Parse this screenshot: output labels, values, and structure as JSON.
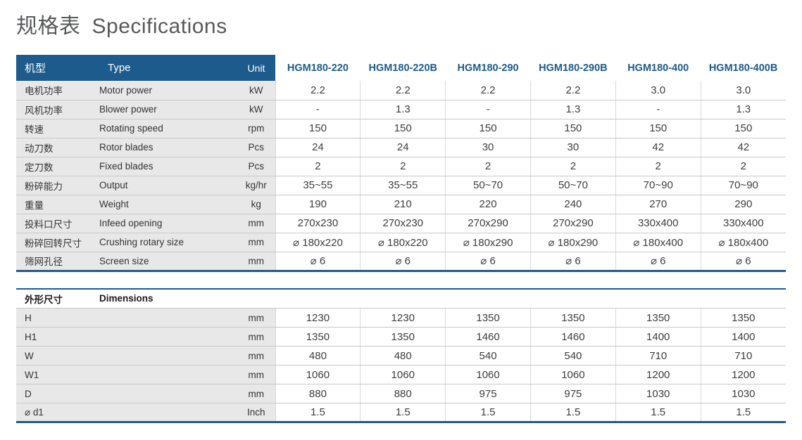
{
  "page": {
    "title_zh": "规格表",
    "title_en": "Specifications"
  },
  "colors": {
    "header_blue": "#1e5b8d",
    "model_text": "#1d5a8c",
    "gray_cell": "#e8e8e8",
    "title_gray": "#58595b"
  },
  "table": {
    "header": {
      "name_zh": "机型",
      "name_en": "Type",
      "unit": "Unit",
      "models": [
        "HGM180-220",
        "HGM180-220B",
        "HGM180-290",
        "HGM180-290B",
        "HGM180-400",
        "HGM180-400B"
      ]
    },
    "rows": [
      {
        "zh": "电机功率",
        "en": "Motor power",
        "unit": "kW",
        "values": [
          "2.2",
          "2.2",
          "2.2",
          "2.2",
          "3.0",
          "3.0"
        ]
      },
      {
        "zh": "风机功率",
        "en": "Blower power",
        "unit": "kW",
        "values": [
          "-",
          "1.3",
          "-",
          "1.3",
          "-",
          "1.3"
        ]
      },
      {
        "zh": "转速",
        "en": "Rotating speed",
        "unit": "rpm",
        "values": [
          "150",
          "150",
          "150",
          "150",
          "150",
          "150"
        ]
      },
      {
        "zh": "动刀数",
        "en": "Rotor blades",
        "unit": "Pcs",
        "values": [
          "24",
          "24",
          "30",
          "30",
          "42",
          "42"
        ]
      },
      {
        "zh": "定刀数",
        "en": "Fixed blades",
        "unit": "Pcs",
        "values": [
          "2",
          "2",
          "2",
          "2",
          "2",
          "2"
        ]
      },
      {
        "zh": "粉碎能力",
        "en": "Output",
        "unit": "kg/hr",
        "values": [
          "35~55",
          "35~55",
          "50~70",
          "50~70",
          "70~90",
          "70~90"
        ]
      },
      {
        "zh": "重量",
        "en": "Weight",
        "unit": "kg",
        "values": [
          "190",
          "210",
          "220",
          "240",
          "270",
          "290"
        ]
      },
      {
        "zh": "投料口尺寸",
        "en": "Infeed opening",
        "unit": "mm",
        "values": [
          "270x230",
          "270x230",
          "270x290",
          "270x290",
          "330x400",
          "330x400"
        ]
      },
      {
        "zh": "粉碎回转尺寸",
        "en": "Crushing rotary size",
        "unit": "mm",
        "values": [
          "⌀ 180x220",
          "⌀ 180x220",
          "⌀ 180x290",
          "⌀ 180x290",
          "⌀ 180x400",
          "⌀ 180x400"
        ]
      },
      {
        "zh": "筛网孔径",
        "en": "Screen size",
        "unit": "mm",
        "values": [
          "⌀ 6",
          "⌀ 6",
          "⌀ 6",
          "⌀ 6",
          "⌀ 6",
          "⌀ 6"
        ]
      }
    ]
  },
  "dimensions_table": {
    "header": {
      "zh": "外形尺寸",
      "en": "Dimensions"
    },
    "rows": [
      {
        "zh": "H",
        "en": "",
        "unit": "mm",
        "values": [
          "1230",
          "1230",
          "1350",
          "1350",
          "1350",
          "1350"
        ]
      },
      {
        "zh": "H1",
        "en": "",
        "unit": "mm",
        "values": [
          "1350",
          "1350",
          "1460",
          "1460",
          "1400",
          "1400"
        ]
      },
      {
        "zh": "W",
        "en": "",
        "unit": "mm",
        "values": [
          "480",
          "480",
          "540",
          "540",
          "710",
          "710"
        ]
      },
      {
        "zh": "W1",
        "en": "",
        "unit": "mm",
        "values": [
          "1060",
          "1060",
          "1060",
          "1060",
          "1200",
          "1200"
        ]
      },
      {
        "zh": "D",
        "en": "",
        "unit": "mm",
        "values": [
          "880",
          "880",
          "975",
          "975",
          "1030",
          "1030"
        ]
      },
      {
        "zh": "⌀ d1",
        "en": "",
        "unit": "Inch",
        "values": [
          "1.5",
          "1.5",
          "1.5",
          "1.5",
          "1.5",
          "1.5"
        ]
      }
    ]
  }
}
